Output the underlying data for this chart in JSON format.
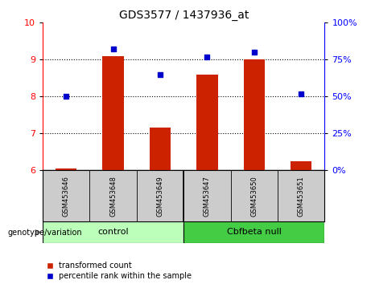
{
  "title": "GDS3577 / 1437936_at",
  "samples": [
    "GSM453646",
    "GSM453648",
    "GSM453649",
    "GSM453647",
    "GSM453650",
    "GSM453651"
  ],
  "group_labels": [
    "control",
    "Cbfbeta null"
  ],
  "transformed_count": [
    6.05,
    9.1,
    7.15,
    8.6,
    9.0,
    6.25
  ],
  "percentile_rank": [
    50,
    82,
    65,
    77,
    80,
    52
  ],
  "bar_color": "#cc2200",
  "dot_color": "#0000cc",
  "ylim_left": [
    6,
    10
  ],
  "ylim_right": [
    0,
    100
  ],
  "yticks_left": [
    6,
    7,
    8,
    9,
    10
  ],
  "yticks_right": [
    0,
    25,
    50,
    75,
    100
  ],
  "control_color": "#bbffbb",
  "cbfbeta_color": "#44cc44",
  "bar_bottom": 6,
  "legend_items": [
    "transformed count",
    "percentile rank within the sample"
  ]
}
